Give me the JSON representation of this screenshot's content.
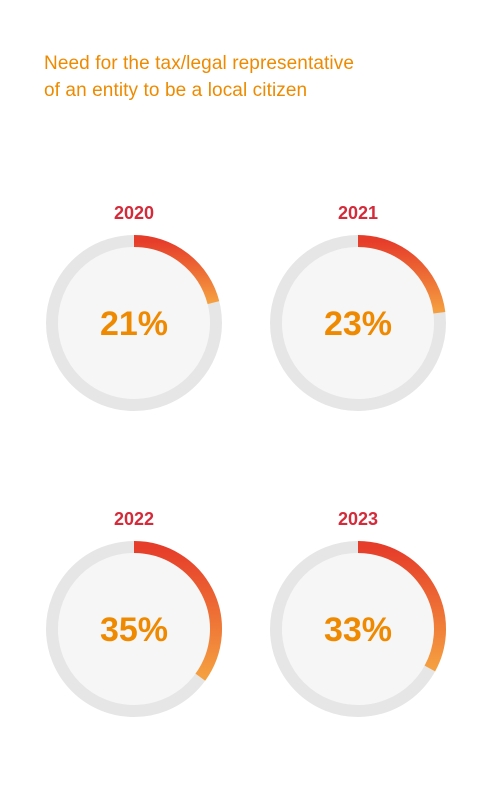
{
  "title_lines": [
    "Need for the tax/legal representative",
    "of an entity to be a local citizen"
  ],
  "colors": {
    "title": "#ee8a00",
    "year_label": "#d42a3a",
    "percent_label": "#ef8a00",
    "arc_start": "#e63c2a",
    "arc_end": "#f5a040",
    "track": "#e6e6e6",
    "inner_fill": "#f6f6f6"
  },
  "chart_data": [
    {
      "type": "pie",
      "title": "2020",
      "value": 21,
      "label": "21%"
    },
    {
      "type": "pie",
      "title": "2021",
      "value": 23,
      "label": "23%"
    },
    {
      "type": "pie",
      "title": "2022",
      "value": 35,
      "label": "35%"
    },
    {
      "type": "pie",
      "title": "2023",
      "value": 33,
      "label": "33%"
    }
  ]
}
